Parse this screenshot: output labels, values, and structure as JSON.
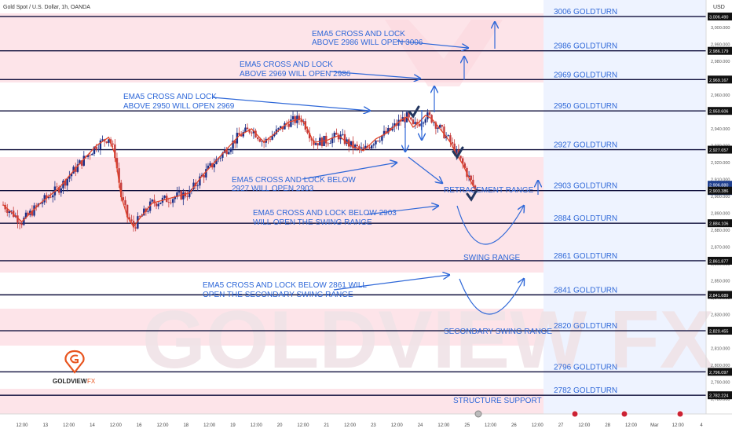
{
  "header": {
    "symbol_title": "Gold Spot / U.S. Dollar, 1h, OANDA",
    "currency": "USD"
  },
  "watermark": {
    "text": "GOLDVIEW FX"
  },
  "logo": {
    "text_bold": "GOLDVIEW",
    "text_light": "FX"
  },
  "colors": {
    "band_fill": "#fde4e9",
    "zone_fill": "#eef3ff",
    "level_line": "#0d0d3a",
    "annotation_blue": "#2f68d8",
    "candle_up": "#1c2f86",
    "candle_down": "#c63b3b",
    "ema": "#e0442a",
    "logo_accent": "#e8541e"
  },
  "price_axis": {
    "ticks": [
      "3,000.000",
      "2,990.000",
      "2,980.000",
      "2,970.000",
      "2,960.000",
      "2,950.000",
      "2,940.000",
      "2,930.000",
      "2,920.000",
      "2,910.000",
      "2,900.000",
      "2,890.000",
      "2,880.000",
      "2,870.000",
      "2,860.000",
      "2,850.000",
      "2,840.000",
      "2,830.000",
      "2,820.000",
      "2,810.000",
      "2,800.000",
      "2,790.000",
      "2,780.000"
    ],
    "markers": [
      "3,006.490",
      "2,986.179",
      "2,969.167",
      "2,950.606",
      "2,927.657",
      "2,906.880",
      "02:11",
      "2,903.386",
      "2,884.106",
      "2,861.877",
      "2,841.689",
      "2,820.455",
      "2,796.097",
      "2,782.224"
    ]
  },
  "time_axis": {
    "labels": [
      "12:00",
      "13",
      "12:00",
      "14",
      "12:00",
      "16",
      "12:00",
      "18",
      "12:00",
      "19",
      "12:00",
      "20",
      "12:00",
      "21",
      "12:00",
      "23",
      "12:00",
      "24",
      "12:00",
      "25",
      "12:00",
      "26",
      "12:00",
      "27",
      "12:00",
      "28",
      "12:00",
      "Mar",
      "12:00",
      "4"
    ]
  },
  "levels": [
    {
      "label": "3006 GOLDTURN"
    },
    {
      "label": "2986 GOLDTURN"
    },
    {
      "label": "2969 GOLDTURN"
    },
    {
      "label": "2950 GOLDTURN"
    },
    {
      "label": "2927 GOLDTURN"
    },
    {
      "label": "2903 GOLDTURN"
    },
    {
      "label": "2884 GOLDTURN"
    },
    {
      "label": "2861 GOLDTURN"
    },
    {
      "label": "2841 GOLDTURN"
    },
    {
      "label": "2820 GOLDTURN"
    },
    {
      "label": "2796 GOLDTURN"
    },
    {
      "label": "2782 GOLDTURN"
    }
  ],
  "annotations": {
    "ema_3006": [
      "EMA5 CROSS AND LOCK",
      "ABOVE 2986 WILL OPEN 3006"
    ],
    "ema_2986": [
      "EMA5 CROSS AND LOCK",
      "ABOVE 2969 WILL OPEN 2986"
    ],
    "ema_2969": [
      "EMA5 CROSS AND LOCK",
      "ABOVE 2950 WILL OPEN 2969"
    ],
    "ema_2903": [
      "EMA5 CROSS AND LOCK BELOW",
      "2927 WILL OPEN 2903"
    ],
    "ema_swing": [
      "EMA5 CROSS AND LOCK BELOW 2903",
      "WILL OPEN THE SWING RANGE"
    ],
    "ema_secondary": [
      "EMA5 CROSS AND LOCK BELOW 2861 WILL",
      "OPEN THE SECONDARY SWING RANGE"
    ],
    "retracement_range": "RETRACEMENT RANGE",
    "swing_range": "SWING RANGE",
    "secondary_swing_range": "SECONDARY SWING RANGE",
    "structure_support": "STRUCTURE SUPPORT"
  },
  "chart_data": {
    "type": "candlestick",
    "title": "Gold Spot / U.S. Dollar, 1h, OANDA",
    "ylabel": "USD",
    "ylim": [
      2778,
      3010
    ],
    "x_categories": [
      "12:00",
      "13",
      "12:00",
      "14",
      "12:00",
      "16",
      "12:00",
      "18",
      "12:00",
      "19",
      "12:00",
      "20",
      "12:00",
      "21",
      "12:00",
      "23",
      "12:00",
      "24",
      "12:00",
      "25",
      "12:00",
      "26",
      "12:00",
      "27",
      "12:00",
      "28",
      "12:00",
      "Mar",
      "12:00",
      "4"
    ],
    "horizontal_levels": [
      3006.49,
      2986.179,
      2969.167,
      2950.606,
      2927.657,
      2903.386,
      2884.106,
      2861.877,
      2841.689,
      2820.455,
      2796.097,
      2782.224
    ],
    "last_price": 2906.88,
    "path_points": [
      [
        0,
        2895
      ],
      [
        6,
        2885
      ],
      [
        12,
        2896
      ],
      [
        18,
        2905
      ],
      [
        24,
        2918
      ],
      [
        30,
        2930
      ],
      [
        34,
        2935
      ],
      [
        36,
        2925
      ],
      [
        38,
        2900
      ],
      [
        40,
        2888
      ],
      [
        42,
        2882
      ],
      [
        44,
        2887
      ],
      [
        48,
        2896
      ],
      [
        52,
        2898
      ],
      [
        56,
        2900
      ],
      [
        60,
        2902
      ],
      [
        64,
        2912
      ],
      [
        68,
        2920
      ],
      [
        72,
        2928
      ],
      [
        76,
        2936
      ],
      [
        80,
        2940
      ],
      [
        84,
        2932
      ],
      [
        88,
        2938
      ],
      [
        92,
        2944
      ],
      [
        96,
        2946
      ],
      [
        98,
        2940
      ],
      [
        100,
        2932
      ],
      [
        104,
        2933
      ],
      [
        108,
        2936
      ],
      [
        112,
        2930
      ],
      [
        116,
        2927
      ],
      [
        120,
        2934
      ],
      [
        124,
        2938
      ],
      [
        128,
        2945
      ],
      [
        130,
        2947
      ],
      [
        132,
        2941
      ],
      [
        134,
        2944
      ],
      [
        136,
        2948
      ],
      [
        138,
        2946
      ],
      [
        142,
        2937
      ],
      [
        144,
        2932
      ],
      [
        146,
        2925
      ],
      [
        148,
        2919
      ],
      [
        150,
        2911
      ],
      [
        152,
        2904
      ]
    ]
  }
}
